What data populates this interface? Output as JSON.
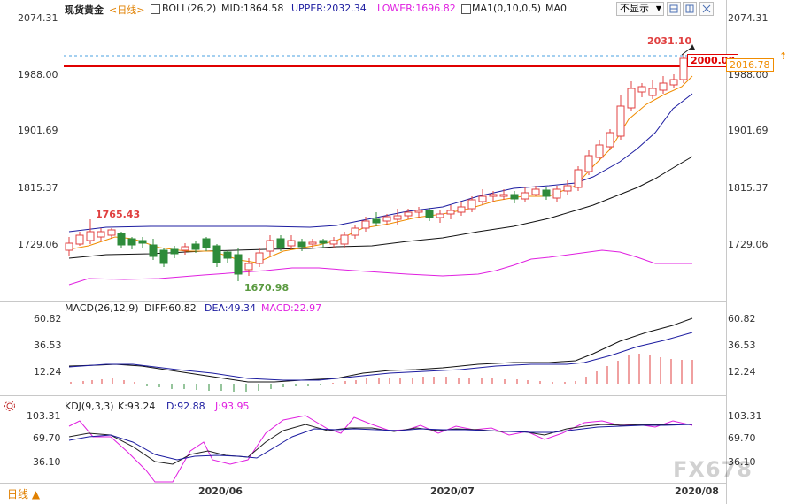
{
  "main_header": {
    "instrument": "现货黄金",
    "period": "<日线>",
    "boll": "BOLL(26,2)",
    "mid": "MID:1864.58",
    "upper": "UPPER:2032.34",
    "lower": "LOWER:1696.82",
    "ma": "MA1(0,10,0,5)",
    "ma0": "MA0",
    "display_select": "不显示"
  },
  "price_axis": {
    "left": [
      "2074.31",
      "1988.00",
      "1901.69",
      "1815.37",
      "1729.06"
    ],
    "right": [
      "2074.31",
      "1988.00",
      "1901.69",
      "1815.37",
      "1729.06"
    ]
  },
  "annotations": {
    "high1": "1765.43",
    "low": "1670.98",
    "high2": "2031.10",
    "level_2000": "2000.00",
    "current_price": "2016.78"
  },
  "macd_header": {
    "name": "MACD(26,12,9)",
    "diff": "DIFF:60.82",
    "dea": "DEA:49.34",
    "macd": "MACD:22.97"
  },
  "macd_axis": {
    "left": [
      "60.82",
      "36.53",
      "12.24"
    ],
    "right": [
      "60.82",
      "36.53",
      "12.24"
    ]
  },
  "kdj_header": {
    "name": "KDJ(9,3,3)",
    "k": "K:93.24",
    "d": "D:92.88",
    "j": "J:93.95"
  },
  "kdj_axis": {
    "left": [
      "103.31",
      "69.70",
      "36.10"
    ],
    "right": [
      "103.31",
      "69.70",
      "36.10"
    ]
  },
  "time_axis": [
    "2020/06",
    "2020/07",
    "2020/08"
  ],
  "footer": {
    "period_button": "日线 ▲"
  },
  "watermark": "FX678",
  "colors": {
    "up": "#e04040",
    "down": "#2e8b3a",
    "mid": "#111111",
    "upper": "#1c1ca0",
    "lower": "#e020e0",
    "ma": "#f08c00",
    "level": "#e00000"
  }
}
